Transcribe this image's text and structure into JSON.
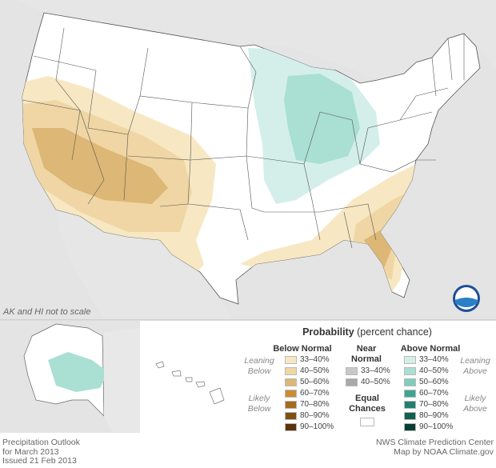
{
  "map": {
    "note": "AK and HI not to scale",
    "footer_left": [
      "Precipitation Outlook",
      "for March 2013",
      "Issued 21 Feb 2013"
    ],
    "footer_right": [
      "NWS Climate Prediction Center",
      "Map by NOAA Climate.gov"
    ],
    "logo_text": "NOAA"
  },
  "legend": {
    "title_bold": "Probability",
    "title_rest": " (percent chance)",
    "below": {
      "header": "Below Normal",
      "leaning": [
        "Leaning",
        "Below"
      ],
      "likely": [
        "Likely",
        "Below"
      ],
      "items": [
        {
          "label": "33–40%",
          "color": "#f7e8c3"
        },
        {
          "label": "40–50%",
          "color": "#efd6a4"
        },
        {
          "label": "50–60%",
          "color": "#ddb775"
        },
        {
          "label": "60–70%",
          "color": "#c98d33"
        },
        {
          "label": "70–80%",
          "color": "#a66a1c"
        },
        {
          "label": "80–90%",
          "color": "#7f4f12"
        },
        {
          "label": "90–100%",
          "color": "#5a3409"
        }
      ]
    },
    "near": {
      "header": [
        "Near",
        "Normal"
      ],
      "items": [
        {
          "label": "33–40%",
          "color": "#c8c8c8"
        },
        {
          "label": "40–50%",
          "color": "#a9a9a9"
        }
      ]
    },
    "equal": {
      "label": [
        "Equal",
        "Chances"
      ],
      "color": "#ffffff"
    },
    "above": {
      "header": "Above Normal",
      "leaning": [
        "Leaning",
        "Above"
      ],
      "likely": [
        "Likely",
        "Above"
      ],
      "items": [
        {
          "label": "33–40%",
          "color": "#d4efe9"
        },
        {
          "label": "40–50%",
          "color": "#aadfd4"
        },
        {
          "label": "50–60%",
          "color": "#7fcdbd"
        },
        {
          "label": "60–70%",
          "color": "#3ea593"
        },
        {
          "label": "70–80%",
          "color": "#21806f"
        },
        {
          "label": "80–90%",
          "color": "#10604f"
        },
        {
          "label": "90–100%",
          "color": "#053f33"
        }
      ]
    }
  }
}
